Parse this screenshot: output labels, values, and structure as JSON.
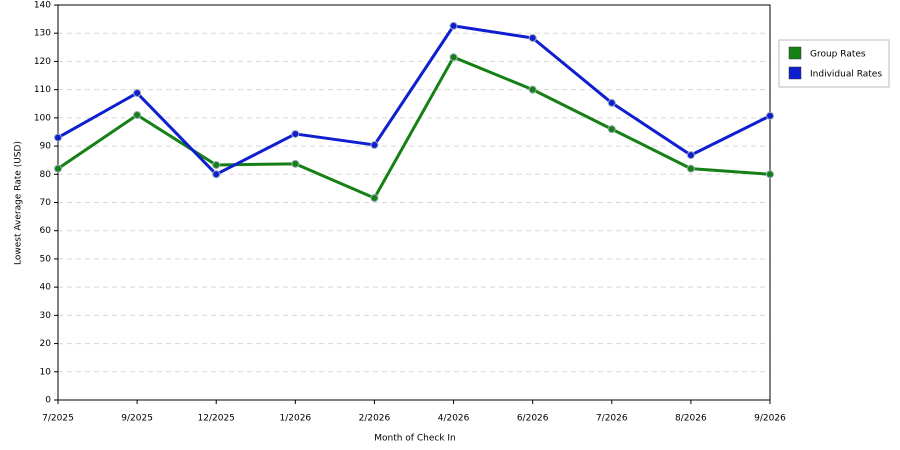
{
  "chart_data": {
    "type": "line",
    "x_label": "Month of Check In",
    "y_label": "Lowest Average Rate (USD)",
    "categories": [
      "7/2025",
      "9/2025",
      "12/2025",
      "1/2026",
      "2/2026",
      "4/2026",
      "6/2026",
      "7/2026",
      "8/2026",
      "9/2026"
    ],
    "series": [
      {
        "name": "Group Rates",
        "color": "#158015",
        "values": [
          82,
          101,
          83.3,
          83.7,
          71.6,
          121.5,
          110,
          96,
          82,
          80
        ]
      },
      {
        "name": "Individual Rates",
        "color": "#0f1fd0",
        "values": [
          93,
          108.8,
          80,
          94.3,
          90.4,
          132.6,
          128.3,
          105.3,
          86.8,
          100.7
        ]
      }
    ],
    "ylim": [
      0,
      140
    ],
    "yticks": [
      0,
      10,
      20,
      30,
      40,
      50,
      60,
      70,
      80,
      90,
      100,
      110,
      120,
      130,
      140
    ],
    "grid": true,
    "legend": "right"
  }
}
